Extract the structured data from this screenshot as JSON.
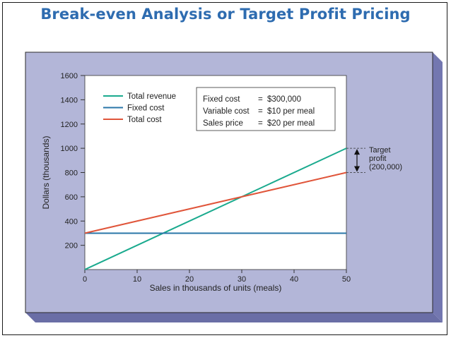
{
  "slide": {
    "title": "Break-even Analysis or Target Profit Pricing"
  },
  "chart_data": {
    "type": "line",
    "title": "",
    "xlabel": "Sales in thousands of units (meals)",
    "ylabel": "Dollars (thousands)",
    "xlim": [
      0,
      50
    ],
    "ylim": [
      0,
      1600
    ],
    "x_ticks": [
      "0",
      "10",
      "20",
      "30",
      "40",
      "50"
    ],
    "y_ticks": [
      "200",
      "400",
      "600",
      "800",
      "1000",
      "1200",
      "1400",
      "1600"
    ],
    "x": [
      0,
      50
    ],
    "series": [
      {
        "name": "Total revenue",
        "color": "#1aaa8e",
        "values": [
          0,
          1000
        ]
      },
      {
        "name": "Fixed cost",
        "color": "#2a76a8",
        "values": [
          300,
          300
        ]
      },
      {
        "name": "Total cost",
        "color": "#e0553a",
        "values": [
          300,
          800
        ]
      }
    ],
    "grid": false,
    "legend_position": "top-left",
    "info_box": [
      {
        "label": "Fixed cost",
        "eq": "=",
        "value": "$300,000"
      },
      {
        "label": "Variable cost",
        "eq": "=",
        "value": "$10 per meal"
      },
      {
        "label": "Sales price",
        "eq": "=",
        "value": "$20 per meal"
      }
    ],
    "annotation": {
      "lines": [
        "Target",
        "profit",
        "(200,000)"
      ],
      "from": 800,
      "to": 1000
    },
    "colors": {
      "panel": "#b3b6d8",
      "panel_shadow": "#7377b0",
      "plot_bg": "#ffffff"
    }
  }
}
